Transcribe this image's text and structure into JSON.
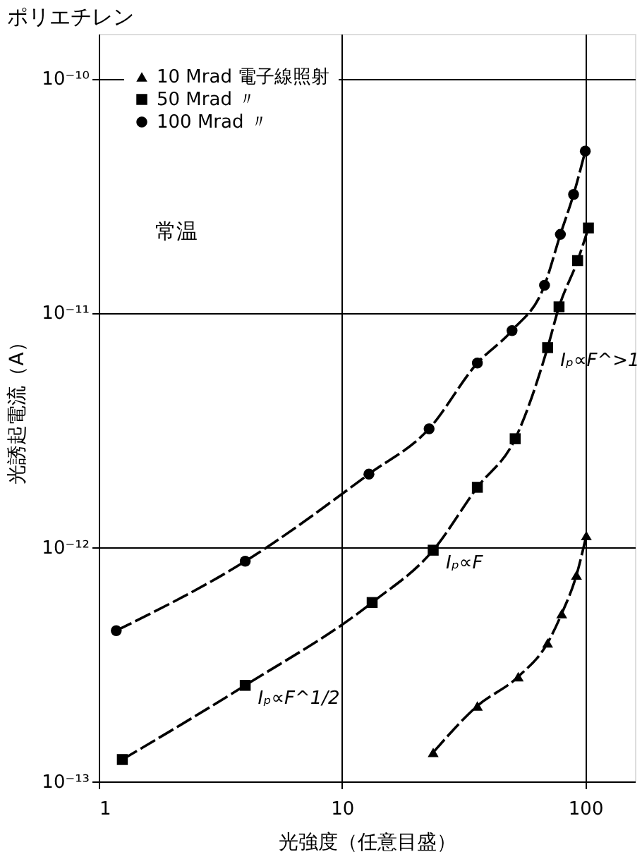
{
  "chart_data": {
    "type": "line",
    "title": "ポリエチレン",
    "xlabel": "光強度（任意目盛）",
    "ylabel": "光誘起電流（A）",
    "log": "xy",
    "grid": true,
    "legend": "top left",
    "line_style": "dashed",
    "xlim": [
      1,
      160
    ],
    "xticks": [
      1,
      10,
      100
    ],
    "ylim": [
      1e-13,
      1.55e-10
    ],
    "yticks": [
      {
        "value": 1e-13,
        "label": "10⁻¹³"
      },
      {
        "value": 1e-12,
        "label": "10⁻¹²"
      },
      {
        "value": 1e-11,
        "label": "10⁻¹¹"
      },
      {
        "value": 1e-10,
        "label": "10⁻¹⁰"
      }
    ],
    "series": [
      {
        "name": "10 Mrad 電子線照射",
        "color": "#000000",
        "marker": "triangle",
        "x": [
          23.7,
          36,
          53,
          70,
          80,
          92,
          101
        ],
        "values": [
          1.33e-13,
          2.1e-13,
          2.8e-13,
          3.9e-13,
          5.2e-13,
          7.6e-13,
          1.12e-12
        ]
      },
      {
        "name": "50 Mrad 〃",
        "color": "#000000",
        "marker": "square",
        "x": [
          1.25,
          4.0,
          13.3,
          23.7,
          36,
          51.5,
          70,
          78,
          93,
          103
        ],
        "values": [
          1.24e-13,
          2.57e-13,
          5.8e-13,
          9.7e-13,
          1.8e-12,
          2.9e-12,
          7.1e-12,
          1.06e-11,
          1.67e-11,
          2.3e-11
        ]
      },
      {
        "name": "100 Mrad 〃",
        "color": "#000000",
        "marker": "circle",
        "x": [
          1.18,
          4.0,
          12.9,
          22.8,
          36,
          50,
          68,
          79,
          89.5,
          100
        ],
        "values": [
          4.4e-13,
          8.7e-13,
          2.05e-12,
          3.2e-12,
          6.1e-12,
          8.4e-12,
          1.31e-11,
          2.16e-11,
          3.2e-11,
          4.9e-11
        ]
      }
    ],
    "annotations": [
      "常温",
      {
        "text": "Iₚ∝F^>1",
        "x": 70,
        "y": 7.1e-12
      },
      {
        "text": "Iₚ∝F",
        "x": 23.7,
        "y": 9.7e-13
      },
      {
        "text": "Iₚ∝F^1/2",
        "x": 4.0,
        "y": 2.57e-13
      }
    ]
  }
}
